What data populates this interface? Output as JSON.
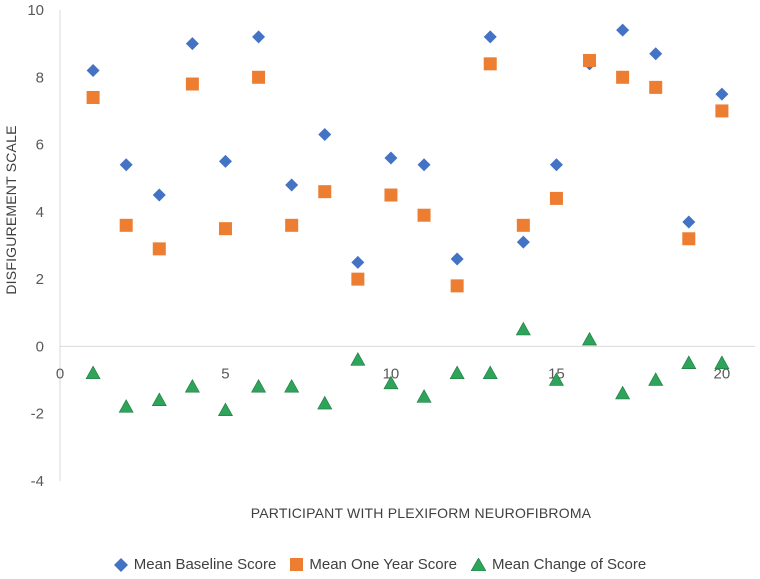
{
  "chart_data": {
    "type": "scatter",
    "title": "",
    "xlabel": "PARTICIPANT WITH PLEXIFORM NEUROFIBROMA",
    "ylabel": "DISFIGUREMENT SCALE",
    "xlim": [
      0,
      21
    ],
    "ylim": [
      -4,
      10
    ],
    "xticks": [
      0,
      5,
      10,
      15,
      20
    ],
    "yticks": [
      10,
      8,
      6,
      4,
      2,
      0,
      -2,
      -4
    ],
    "legend_position": "bottom",
    "series": [
      {
        "name": "Mean Baseline Score",
        "marker": "diamond",
        "color": "#4472C4",
        "x": [
          1,
          2,
          3,
          4,
          5,
          6,
          7,
          8,
          9,
          10,
          11,
          12,
          13,
          14,
          15,
          16,
          17,
          18,
          19,
          20
        ],
        "values": [
          8.2,
          5.4,
          4.5,
          9.0,
          5.5,
          9.2,
          4.8,
          6.3,
          2.5,
          5.6,
          5.4,
          2.6,
          9.2,
          3.1,
          5.4,
          8.4,
          9.4,
          8.7,
          3.7,
          7.5
        ]
      },
      {
        "name": "Mean One Year Score",
        "marker": "square",
        "color": "#ED7D31",
        "x": [
          1,
          2,
          3,
          4,
          5,
          6,
          7,
          8,
          9,
          10,
          11,
          12,
          13,
          14,
          15,
          16,
          17,
          18,
          19,
          20
        ],
        "values": [
          7.4,
          3.6,
          2.9,
          7.8,
          3.5,
          8.0,
          3.6,
          4.6,
          2.0,
          4.5,
          3.9,
          1.8,
          8.4,
          3.6,
          4.4,
          8.5,
          8.0,
          7.7,
          3.2,
          7.0
        ]
      },
      {
        "name": "Mean Change of Score",
        "marker": "triangle",
        "color": "#2EA35A",
        "x": [
          1,
          2,
          3,
          4,
          5,
          6,
          7,
          8,
          9,
          10,
          11,
          12,
          13,
          14,
          15,
          16,
          17,
          18,
          19,
          20
        ],
        "values": [
          -0.8,
          -1.8,
          -1.6,
          -1.2,
          -1.9,
          -1.2,
          -1.2,
          -1.7,
          -0.4,
          -1.1,
          -1.5,
          -0.8,
          -0.8,
          0.5,
          -1.0,
          0.2,
          -1.4,
          -1.0,
          -0.5,
          -0.5
        ]
      }
    ]
  }
}
